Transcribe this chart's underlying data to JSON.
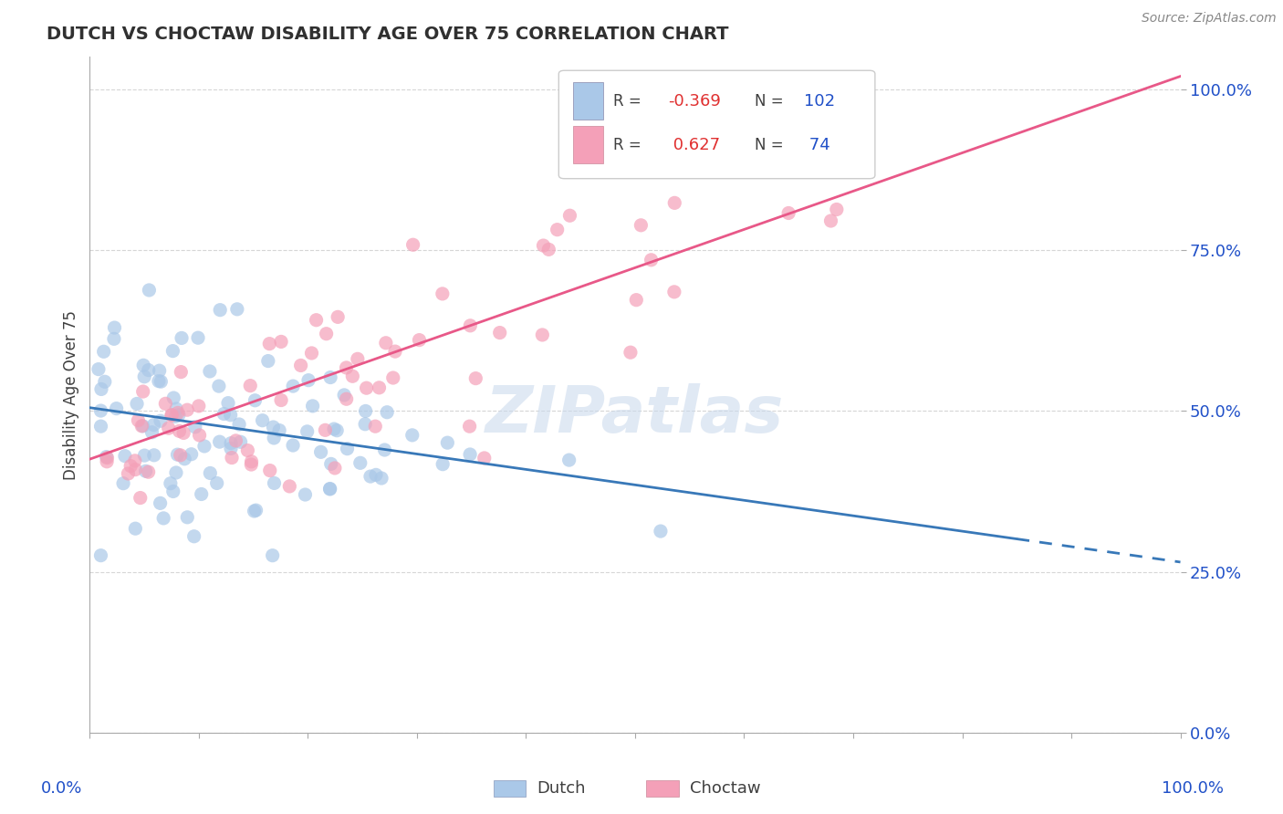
{
  "title": "DUTCH VS CHOCTAW DISABILITY AGE OVER 75 CORRELATION CHART",
  "source": "Source: ZipAtlas.com",
  "ylabel": "Disability Age Over 75",
  "xmin": 0.0,
  "xmax": 1.0,
  "ymin": 0.0,
  "ymax": 1.05,
  "ytick_labels": [
    "0.0%",
    "25.0%",
    "50.0%",
    "75.0%",
    "100.0%"
  ],
  "ytick_values": [
    0.0,
    0.25,
    0.5,
    0.75,
    1.0
  ],
  "watermark": "ZIPatlas",
  "dutch_color": "#aac8e8",
  "choctaw_color": "#f4a0b8",
  "dutch_line_color": "#3878b8",
  "choctaw_line_color": "#e85888",
  "dutch_R": -0.369,
  "dutch_N": 102,
  "choctaw_R": 0.627,
  "choctaw_N": 74,
  "legend_R_color": "#e03030",
  "legend_N_color": "#2050c8",
  "title_color": "#303030",
  "axis_label_color": "#2050c8",
  "grid_color": "#cccccc",
  "dutch_line_x0": 0.0,
  "dutch_line_y0": 0.505,
  "dutch_line_x1": 1.0,
  "dutch_line_y1": 0.265,
  "dutch_line_solid_end": 0.85,
  "choctaw_line_x0": 0.0,
  "choctaw_line_y0": 0.425,
  "choctaw_line_x1": 1.0,
  "choctaw_line_y1": 1.02
}
